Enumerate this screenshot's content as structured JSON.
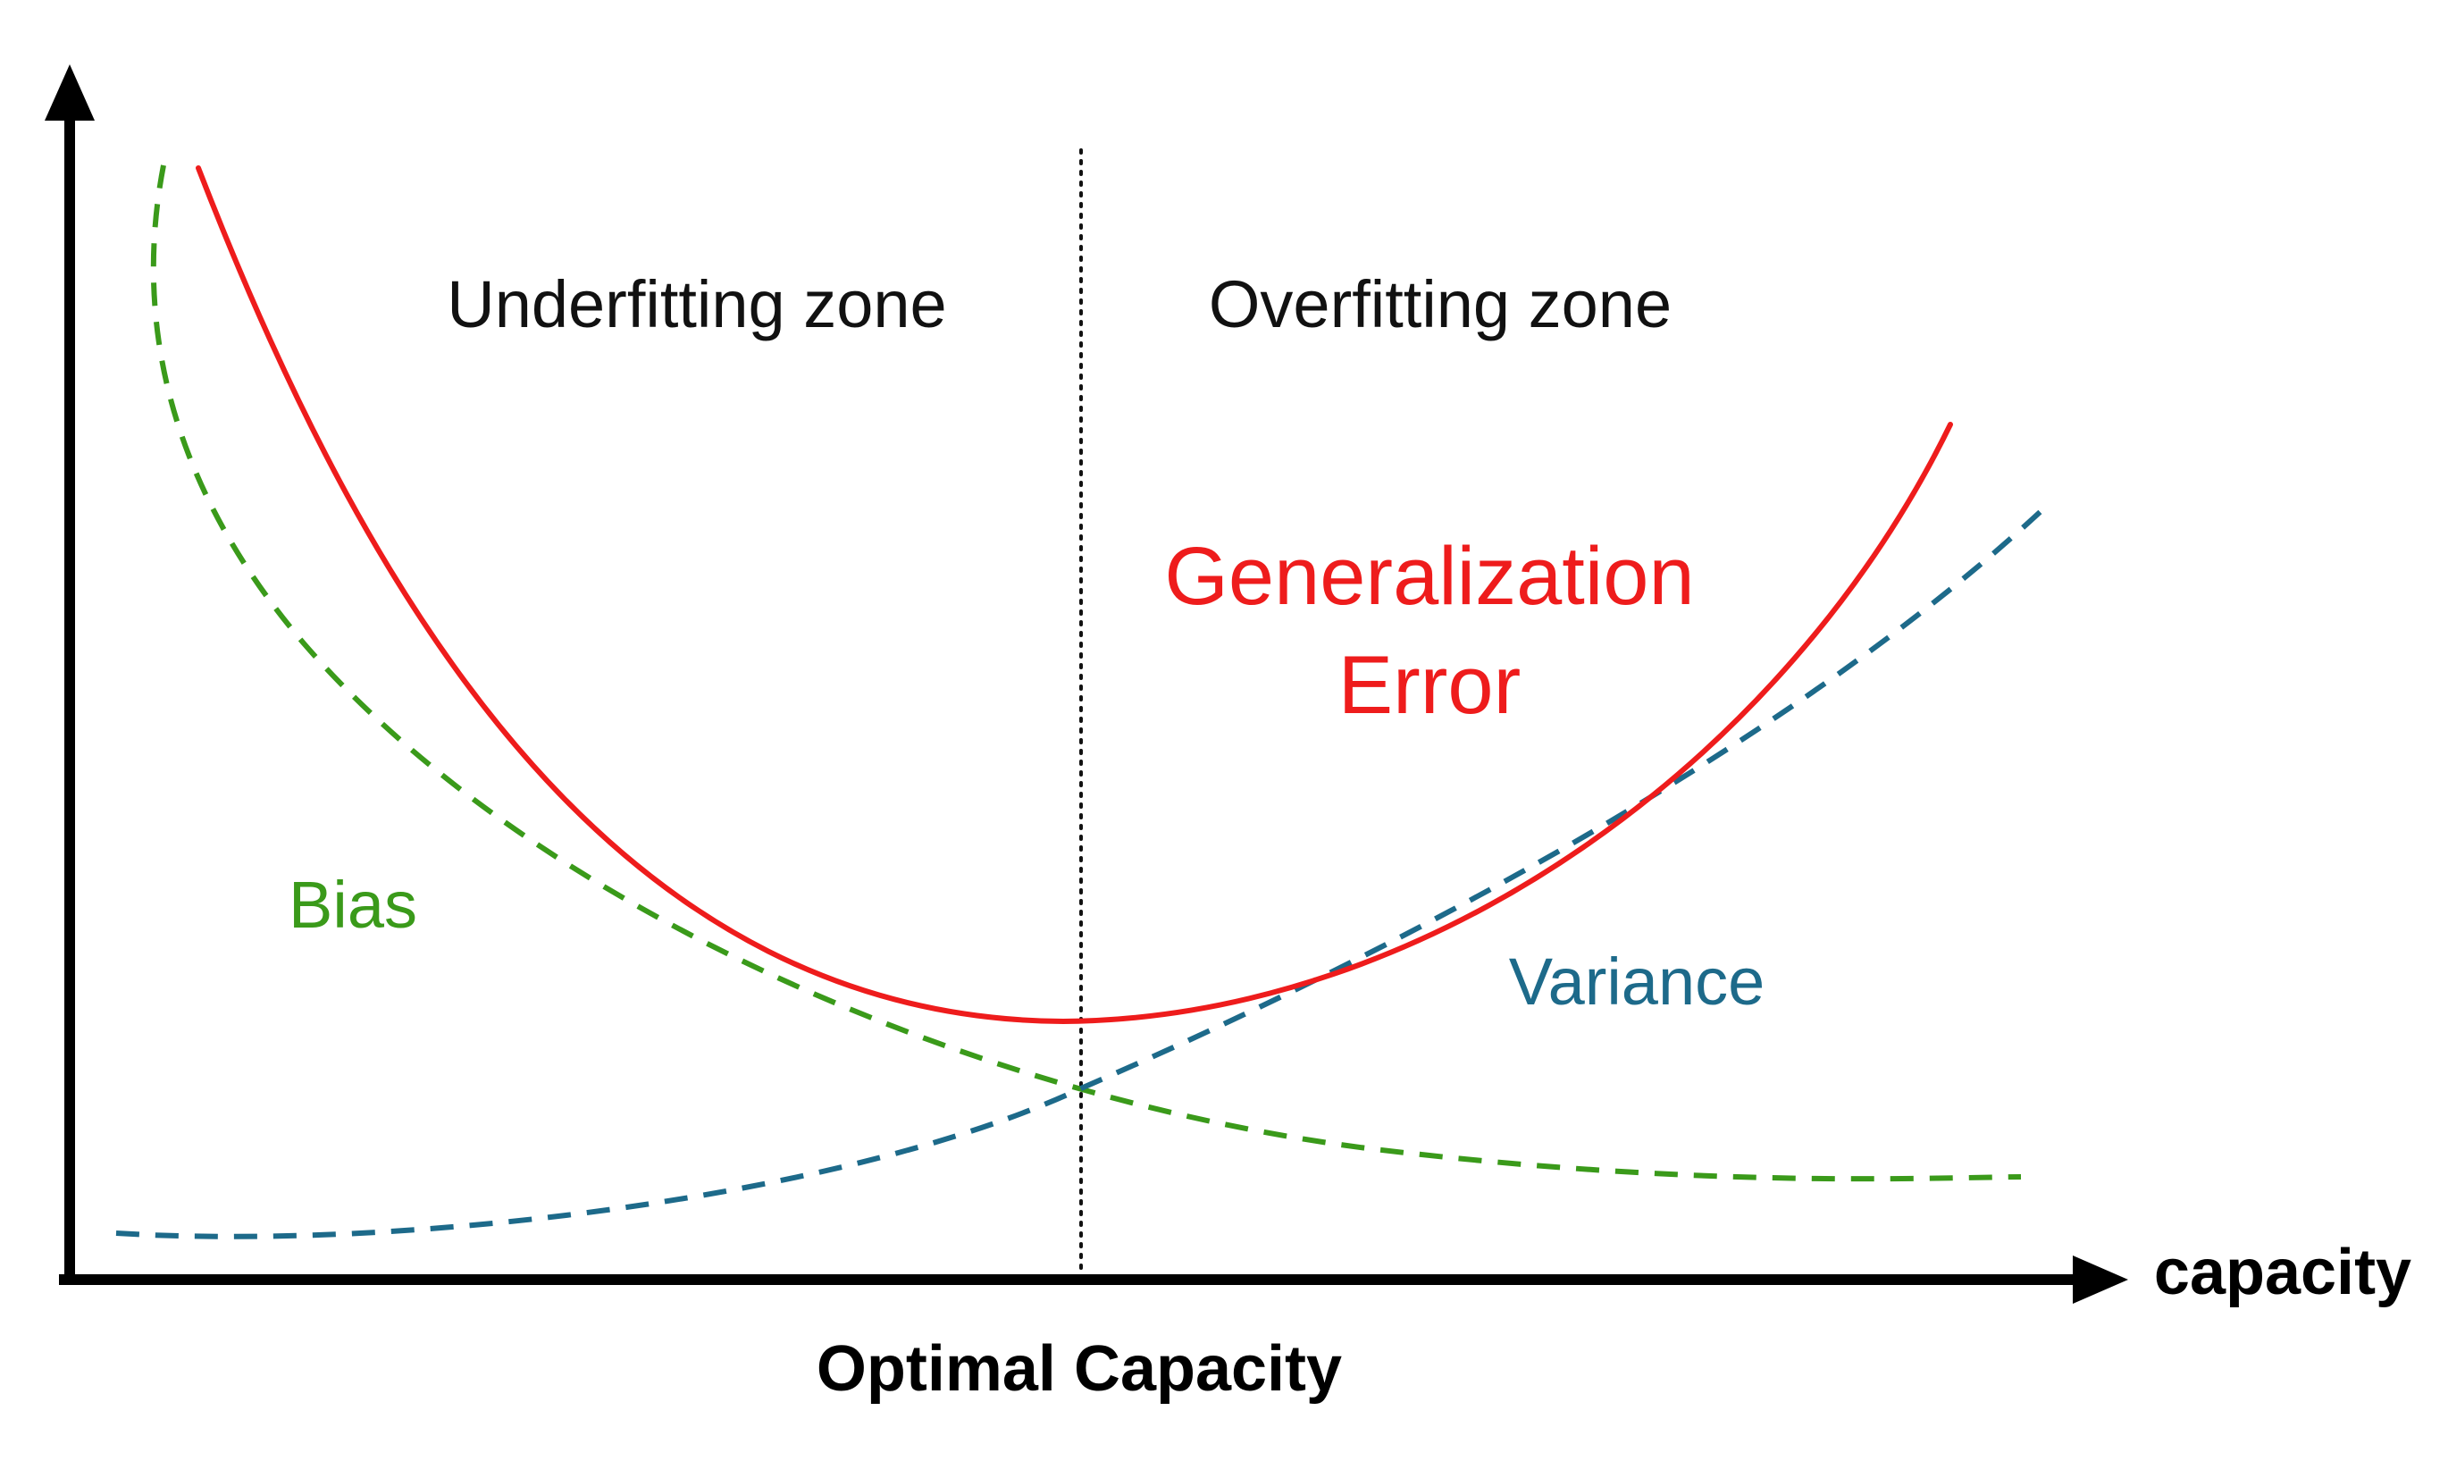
{
  "diagram": {
    "zones": {
      "left": "Underfitting zone",
      "right": "Overfitting zone"
    },
    "curves": {
      "generalization": {
        "line1": "Generalization",
        "line2": "Error",
        "color": "#ee1c1c",
        "style": "solid"
      },
      "bias": {
        "label": "Bias",
        "color": "#3a9a1a",
        "style": "dashed"
      },
      "variance": {
        "label": "Variance",
        "color": "#1d6a8a",
        "style": "dashed"
      }
    },
    "x_axis_label": "capacity",
    "marker_label": "Optimal Capacity",
    "axis_color": "#000000"
  }
}
